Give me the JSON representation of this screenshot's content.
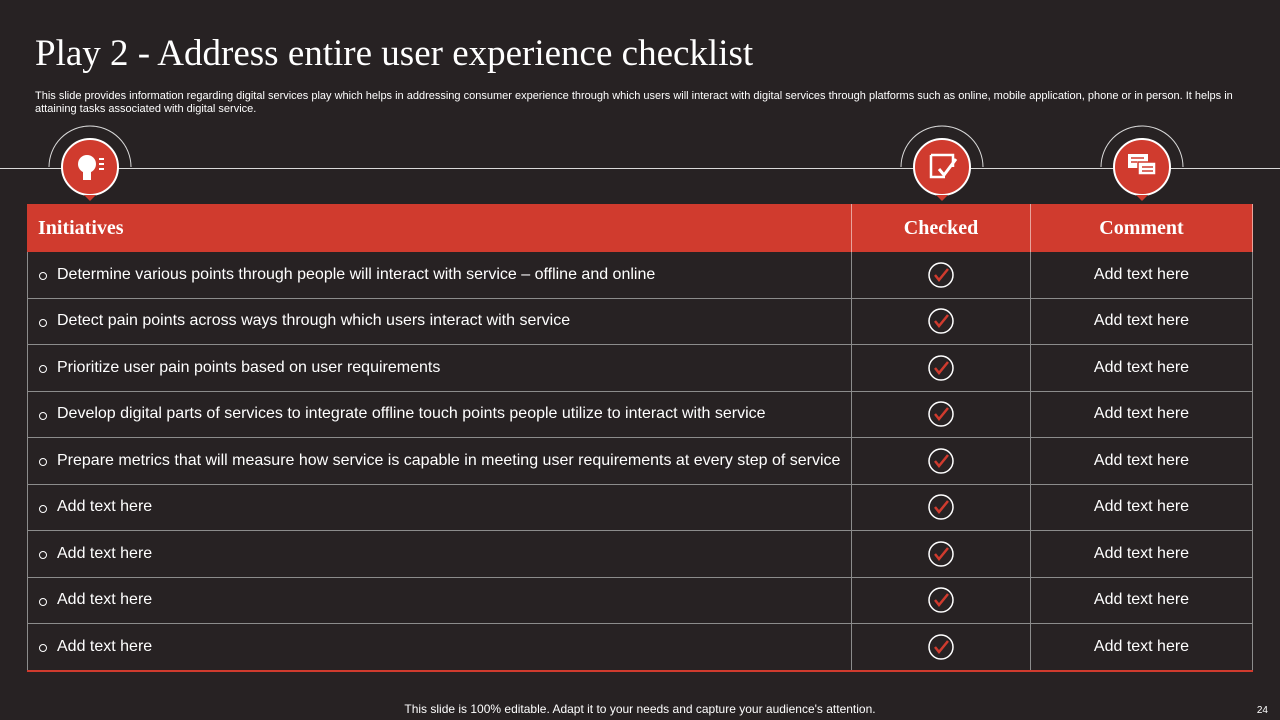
{
  "title": "Play 2 - Address entire user experience checklist",
  "description": "This slide provides information regarding digital services play which helps in addressing consumer experience through which users will interact with digital services through platforms such as online, mobile application, phone or in person. It helps in attaining tasks associated with digital service.",
  "table": {
    "headers": [
      "Initiatives",
      "Checked",
      "Comment"
    ],
    "rows": [
      {
        "initiative": "Determine various points through people will interact with service – offline and online",
        "comment": "Add text here"
      },
      {
        "initiative": "Detect pain points across ways through  which users interact with service",
        "comment": "Add text here"
      },
      {
        "initiative": "Prioritize user pain points based on user requirements",
        "comment": "Add text here"
      },
      {
        "initiative": "Develop digital parts of services to integrate offline touch points people utilize to interact with service",
        "comment": "Add text here"
      },
      {
        "initiative": "Prepare metrics that will measure how service is capable in meeting user requirements at every step of service",
        "comment": "Add text here"
      },
      {
        "initiative": "Add text here",
        "comment": "Add text here"
      },
      {
        "initiative": "Add text here",
        "comment": "Add text here"
      },
      {
        "initiative": "Add text here",
        "comment": "Add text here"
      },
      {
        "initiative": "Add text here",
        "comment": "Add text here"
      }
    ]
  },
  "footer": "This slide is 100% editable. Adapt it to your needs and capture your audience's attention.",
  "page_number": "24"
}
